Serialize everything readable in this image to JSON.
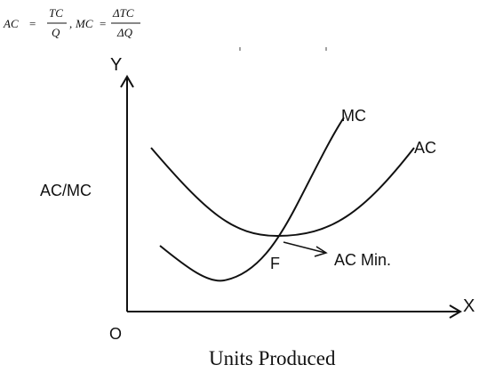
{
  "formula": {
    "ac_lhs": "AC",
    "equals": "=",
    "ac_numerator": "TC",
    "ac_denominator": "Q",
    "separator": ",",
    "mc_lhs": "MC",
    "mc_numerator": "ΔTC",
    "mc_denominator": "ΔQ"
  },
  "diagram": {
    "y_axis_letter": "Y",
    "x_axis_letter": "X",
    "origin_label": "O",
    "y_axis_title": "AC/MC",
    "x_axis_title": "Units Produced",
    "mc_curve_label": "MC",
    "ac_curve_label": "AC",
    "point_label": "F",
    "annotation": "AC Min.",
    "colors": {
      "ink": "#111111",
      "background": "#ffffff"
    }
  }
}
